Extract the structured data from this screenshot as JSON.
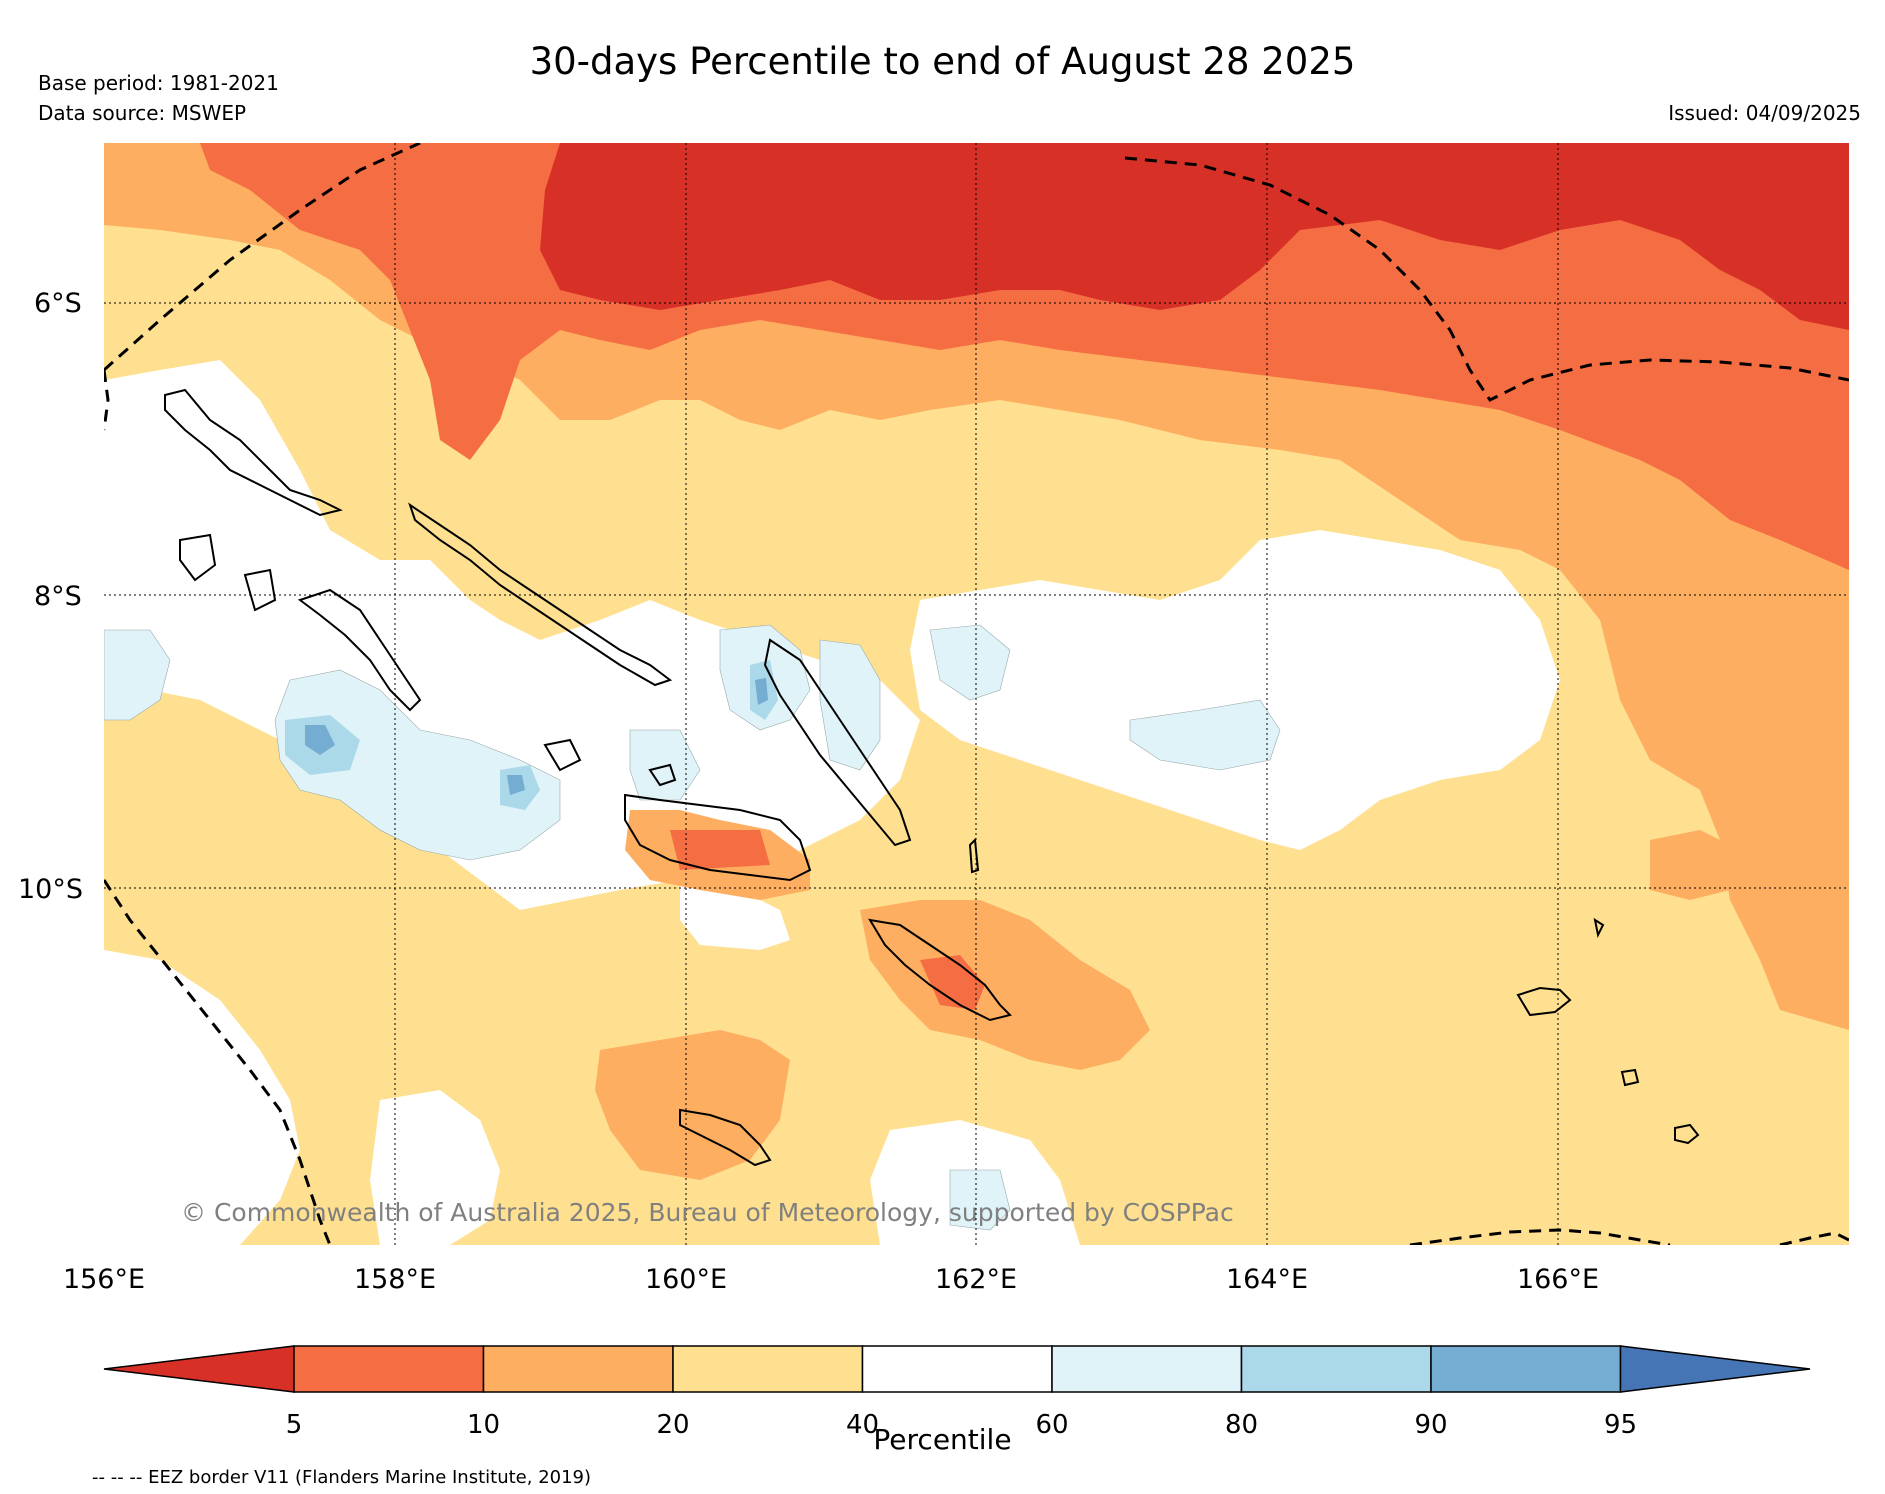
{
  "header": {
    "title": "30-days Percentile to end of August 28 2025",
    "base_period": "Base period: 1981-2021",
    "data_source": "Data source: MSWEP",
    "issued": "Issued: 04/09/2025"
  },
  "map": {
    "lat_labels": [
      "6°S",
      "8°S",
      "10°S"
    ],
    "lon_labels": [
      "156°E",
      "158°E",
      "160°E",
      "162°E",
      "164°E",
      "166°E"
    ],
    "copyright": "© Commonwealth of Australia 2025, Bureau of Meteorology, supported by COSPPac",
    "colors": {
      "below_5": "#d73027",
      "p5_10": "#f46d43",
      "p10_20": "#fdae61",
      "p20_40": "#fee090",
      "p40_60": "#ffffff",
      "p60_80": "#e0f3f8",
      "p80_90": "#abd9e9",
      "p90_95": "#74add1",
      "above_95": "#4575b4"
    }
  },
  "colorbar": {
    "ticks": [
      "5",
      "10",
      "20",
      "40",
      "60",
      "80",
      "90",
      "95"
    ],
    "title": "Percentile"
  },
  "footer": {
    "eez_note": "-- -- -- EEZ border V11 (Flanders Marine Institute, 2019)"
  }
}
